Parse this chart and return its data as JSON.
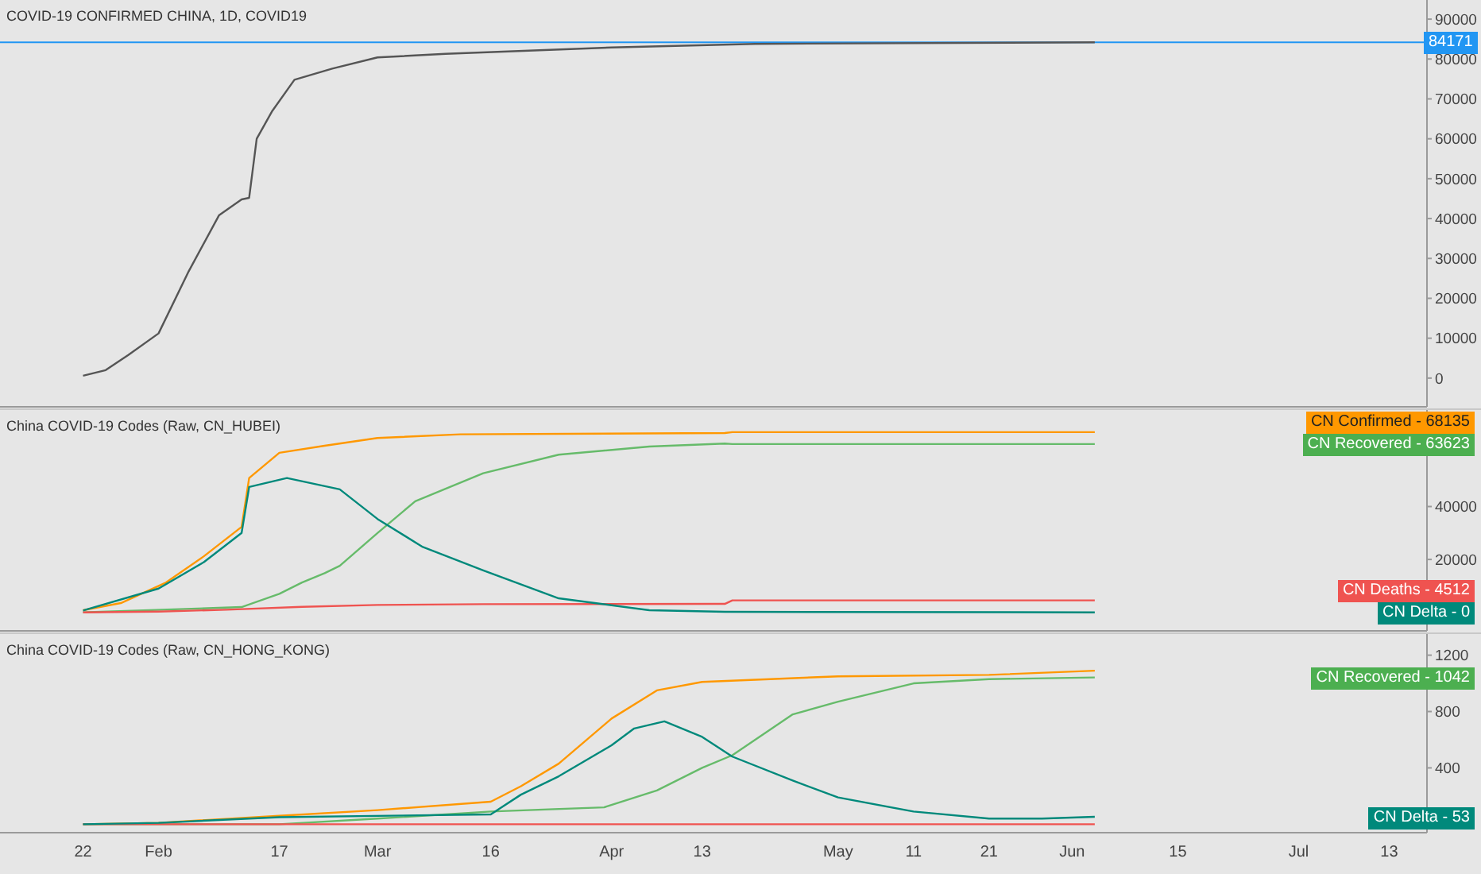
{
  "chart_data": [
    {
      "type": "line",
      "title": "COVID-19 CONFIRMED CHINA, 1D, COVID19",
      "marker": "none",
      "tick_labels": "y",
      "xlim": [
        "--01-11",
        "--07-18"
      ],
      "ylim": [
        -7200,
        94800
      ],
      "yticks": [
        0,
        10000,
        20000,
        30000,
        40000,
        50000,
        60000,
        70000,
        80000,
        90000
      ],
      "ref_lines": [
        {
          "axis": "y",
          "value": 84171,
          "label": "84171",
          "color": "#2196f3"
        }
      ],
      "series": [
        {
          "color": "#555555",
          "x": [
            "--01-22",
            "--01-25",
            "--01-28",
            "--02-01",
            "--02-05",
            "--02-09",
            "--02-12",
            "--02-13",
            "--02-14",
            "--02-16",
            "--02-19",
            "--02-24",
            "--03-01",
            "--03-10",
            "--04-01",
            "--04-20",
            "--06-04"
          ],
          "values": [
            600,
            2000,
            5800,
            11200,
            26800,
            40800,
            44800,
            45200,
            60000,
            66800,
            74800,
            77600,
            80400,
            81300,
            82900,
            83800,
            84200
          ]
        }
      ]
    },
    {
      "type": "line",
      "title": "China COVID-19 Codes (Raw, CN_HUBEI)",
      "marker": "none",
      "tick_labels": "y",
      "xlim": [
        "--01-11",
        "--07-18"
      ],
      "ylim": [
        -7000,
        76500
      ],
      "yticks": [
        20000,
        40000
      ],
      "series": [
        {
          "name": "CN Confirmed -",
          "color": "#ff9800",
          "x": [
            "--01-22",
            "--01-27",
            "--02-02",
            "--02-07",
            "--02-12",
            "--02-13",
            "--02-17",
            "--02-23",
            "--03-01",
            "--03-12",
            "--04-16",
            "--04-17",
            "--06-04"
          ],
          "values": [
            800,
            3500,
            11300,
            21200,
            32300,
            50800,
            60300,
            63000,
            65900,
            67300,
            67800,
            68135,
            68135
          ],
          "value_labels": [
            null,
            null,
            null,
            null,
            null,
            null,
            null,
            null,
            null,
            null,
            null,
            null,
            "68135"
          ]
        },
        {
          "name": "CN Recovered -",
          "color": "#66bb6a",
          "x": [
            "--01-22",
            "--02-01",
            "--02-12",
            "--02-17",
            "--02-20",
            "--02-23",
            "--02-25",
            "--03-01",
            "--03-06",
            "--03-15",
            "--03-25",
            "--04-06",
            "--04-16",
            "--04-17",
            "--06-04"
          ],
          "values": [
            0,
            null,
            2000,
            7000,
            11300,
            14800,
            17600,
            30000,
            42000,
            52600,
            59600,
            62700,
            63800,
            63623,
            63623
          ],
          "value_labels": [
            null,
            null,
            null,
            null,
            null,
            null,
            null,
            null,
            null,
            null,
            null,
            null,
            null,
            null,
            "63623"
          ]
        },
        {
          "name": "CN Deaths -",
          "color": "#ef5350",
          "x": [
            "--01-22",
            "--02-01",
            "--02-10",
            "--02-20",
            "--03-01",
            "--03-15",
            "--04-16",
            "--04-17",
            "--06-04"
          ],
          "values": [
            0,
            300,
            1000,
            2100,
            2800,
            3100,
            3200,
            4512,
            4512
          ],
          "value_labels": [
            null,
            null,
            null,
            null,
            null,
            null,
            null,
            null,
            "4512"
          ]
        },
        {
          "name": "CN Delta -",
          "color": "#00897b",
          "x": [
            "--01-22",
            "--02-01",
            "--02-07",
            "--02-12",
            "--02-13",
            "--02-18",
            "--02-25",
            "--03-01",
            "--03-07",
            "--03-15",
            "--03-25",
            "--04-06",
            "--04-16",
            "--06-04"
          ],
          "values": [
            700,
            9000,
            19000,
            30000,
            47400,
            50800,
            46500,
            35300,
            24700,
            15900,
            5300,
            800,
            200,
            0
          ],
          "value_labels": [
            null,
            null,
            null,
            null,
            null,
            null,
            null,
            null,
            null,
            null,
            null,
            null,
            null,
            "0"
          ]
        }
      ]
    },
    {
      "type": "line",
      "title": "China COVID-19 Codes (Raw, CN_HONG_KONG)",
      "marker": "none",
      "xlim": [
        "--01-11",
        "--07-18"
      ],
      "ylim": [
        -60,
        1350
      ],
      "yticks": [
        400,
        800,
        1200
      ],
      "xticks": [
        {
          "value": "--01-22",
          "label": "22"
        },
        {
          "value": "--02-01",
          "label": "Feb"
        },
        {
          "value": "--02-17",
          "label": "17"
        },
        {
          "value": "--03-01",
          "label": "Mar"
        },
        {
          "value": "--03-16",
          "label": "16"
        },
        {
          "value": "--04-01",
          "label": "Apr"
        },
        {
          "value": "--04-13",
          "label": "13"
        },
        {
          "value": "--05-01",
          "label": "May"
        },
        {
          "value": "--05-11",
          "label": "11"
        },
        {
          "value": "--05-21",
          "label": "21"
        },
        {
          "value": "--06-01",
          "label": "Jun"
        },
        {
          "value": "--06-15",
          "label": "15"
        },
        {
          "value": "--07-01",
          "label": "Jul"
        },
        {
          "value": "--07-13",
          "label": "13"
        }
      ],
      "series": [
        {
          "color": "#ff9800",
          "x": [
            "--01-22",
            "--02-01",
            "--02-17",
            "--03-01",
            "--03-16",
            "--03-20",
            "--03-25",
            "--04-01",
            "--04-07",
            "--04-13",
            "--05-01",
            "--05-21",
            "--06-04"
          ],
          "values": [
            0,
            10,
            60,
            100,
            160,
            270,
            430,
            750,
            950,
            1010,
            1050,
            1060,
            1090
          ]
        },
        {
          "name": "CN Recovered -",
          "color": "#66bb6a",
          "x": [
            "--01-22",
            "--02-17",
            "--03-01",
            "--03-16",
            "--03-31",
            "--04-07",
            "--04-13",
            "--04-17",
            "--04-25",
            "--05-01",
            "--05-11",
            "--05-21",
            "--06-04"
          ],
          "values": [
            0,
            0,
            40,
            90,
            120,
            240,
            400,
            490,
            780,
            870,
            1000,
            1030,
            1042
          ],
          "value_labels": [
            null,
            null,
            null,
            null,
            null,
            null,
            null,
            null,
            null,
            null,
            null,
            null,
            "1042"
          ]
        },
        {
          "color": "#ef5350",
          "x": [
            "--01-22",
            "--02-04",
            "--03-20",
            "--06-04"
          ],
          "values": [
            0,
            0,
            0,
            0
          ]
        },
        {
          "name": "CN Delta -",
          "color": "#00897b",
          "x": [
            "--01-22",
            "--02-01",
            "--02-17",
            "--03-16",
            "--03-20",
            "--03-25",
            "--04-01",
            "--04-04",
            "--04-08",
            "--04-13",
            "--04-17",
            "--04-25",
            "--05-01",
            "--05-11",
            "--05-21",
            "--05-28",
            "--06-04"
          ],
          "values": [
            0,
            10,
            50,
            70,
            210,
            340,
            560,
            680,
            730,
            620,
            480,
            310,
            190,
            90,
            40,
            40,
            53
          ],
          "value_labels": [
            null,
            null,
            null,
            null,
            null,
            null,
            null,
            null,
            null,
            null,
            null,
            null,
            null,
            null,
            null,
            null,
            "53"
          ]
        }
      ]
    }
  ]
}
